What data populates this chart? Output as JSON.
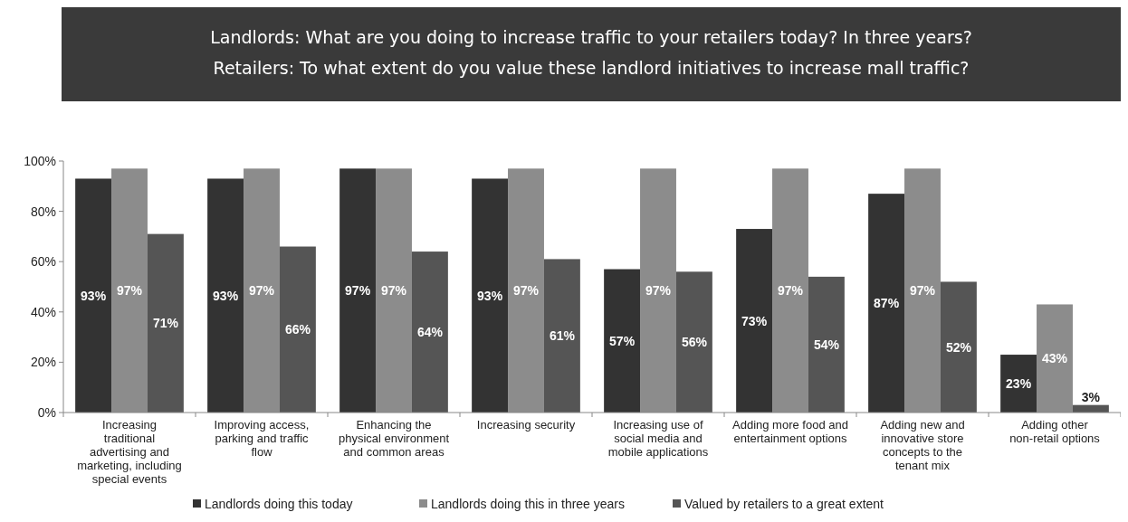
{
  "chart_data": {
    "type": "bar",
    "title": "Landlords: What are you doing to increase traffic to your retailers today? In three years?",
    "subtitle": "Retailers: To what extent do you value these landlord initiatives to increase mall traffic?",
    "categories": [
      "Increasing traditional advertising and marketing, including special events",
      "Improving access, parking and traffic flow",
      "Enhancing the physical environment and common areas",
      "Increasing security",
      "Increasing use of social media and mobile applications",
      "Adding more food and entertainment options",
      "Adding new and innovative store concepts to the tenant mix",
      "Adding other non-retail options"
    ],
    "series": [
      {
        "name": "Landlords doing this today",
        "color": "#333333",
        "values": [
          93,
          93,
          97,
          93,
          57,
          73,
          87,
          23
        ],
        "value_labels": [
          "93%",
          "93%",
          "97%",
          "93%",
          "57%",
          "73%",
          "87%",
          "23%"
        ]
      },
      {
        "name": "Landlords doing this in three years",
        "color": "#8c8c8c",
        "values": [
          97,
          97,
          97,
          97,
          97,
          97,
          97,
          43
        ],
        "value_labels": [
          "97%",
          "97%",
          "97%",
          "97%",
          "97%",
          "97%",
          "97%",
          "43%"
        ]
      },
      {
        "name": "Valued by retailers to a great extent",
        "color": "#555555",
        "values": [
          71,
          66,
          64,
          61,
          56,
          54,
          52,
          3
        ],
        "value_labels": [
          "71%",
          "66%",
          "64%",
          "61%",
          "56%",
          "54%",
          "52%",
          "3%"
        ]
      }
    ],
    "ylim": [
      0,
      100
    ],
    "yticks": [
      {
        "value": 0,
        "label": "0%"
      },
      {
        "value": 20,
        "label": "20%"
      },
      {
        "value": 40,
        "label": "40%"
      },
      {
        "value": 60,
        "label": "60%"
      },
      {
        "value": 80,
        "label": "80%"
      },
      {
        "value": 100,
        "label": "100%"
      }
    ],
    "legend": "bottom",
    "grid": false
  }
}
